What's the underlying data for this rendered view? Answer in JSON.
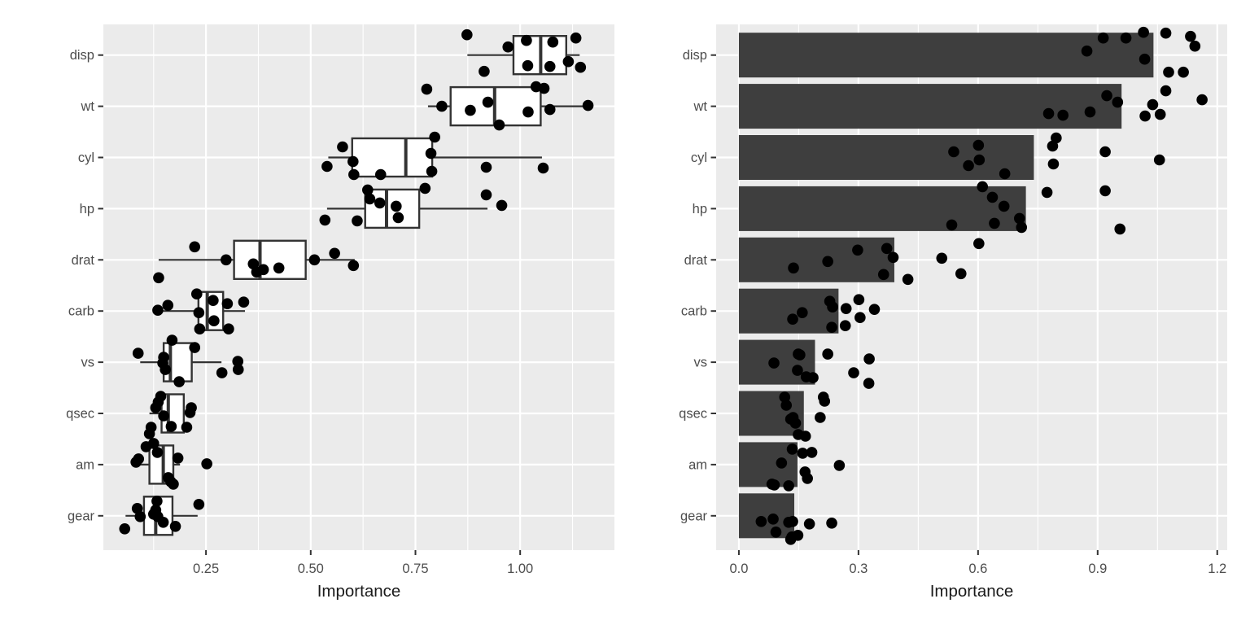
{
  "app": {
    "background": "#FFFFFF"
  },
  "style": {
    "panel_bg": "#EBEBEB",
    "grid_major": "#FFFFFF",
    "grid_minor": "#FFFFFF",
    "bar_fill": "#3E3E3E",
    "box_fill": "#FFFFFF",
    "box_stroke": "#333333",
    "point_color": "#000000",
    "axis_text_color": "#4D4D4D",
    "axis_title_color": "#1A1A1A",
    "tick_mark_color": "#333333"
  },
  "chart_data": [
    {
      "type": "boxplot",
      "title": "",
      "xlabel": "Importance",
      "ylabel": "",
      "legend": "none",
      "grid": true,
      "categories": [
        "disp",
        "wt",
        "cyl",
        "hp",
        "drat",
        "carb",
        "vs",
        "qsec",
        "am",
        "gear"
      ],
      "x_axis": {
        "tick_labels": [
          "0.25",
          "0.50",
          "0.75",
          "1.00"
        ],
        "tick_values": [
          0.25,
          0.5,
          0.75,
          1.0
        ],
        "minor_values": [
          0.125,
          0.375,
          0.625,
          0.875,
          1.125
        ],
        "range": [
          0.005,
          1.225
        ]
      },
      "boxes": [
        {
          "cat": "disp",
          "whisker_lo": 0.874,
          "q1": 0.984,
          "median": 1.049,
          "q3": 1.11,
          "whisker_hi": 1.142
        },
        {
          "cat": "wt",
          "whisker_lo": 0.78,
          "q1": 0.834,
          "median": 0.939,
          "q3": 1.049,
          "whisker_hi": 1.162
        },
        {
          "cat": "cyl",
          "whisker_lo": 0.542,
          "q1": 0.599,
          "median": 0.727,
          "q3": 0.79,
          "whisker_hi": 1.052
        },
        {
          "cat": "hp",
          "whisker_lo": 0.539,
          "q1": 0.63,
          "median": 0.681,
          "q3": 0.759,
          "whisker_hi": 0.922
        },
        {
          "cat": "drat",
          "whisker_lo": 0.137,
          "q1": 0.317,
          "median": 0.379,
          "q3": 0.488,
          "whisker_hi": 0.605
        },
        {
          "cat": "carb",
          "whisker_lo": 0.142,
          "q1": 0.232,
          "median": 0.253,
          "q3": 0.291,
          "whisker_hi": 0.343
        },
        {
          "cat": "vs",
          "whisker_lo": 0.093,
          "q1": 0.149,
          "median": 0.165,
          "q3": 0.216,
          "whisker_hi": 0.287
        },
        {
          "cat": "qsec",
          "whisker_lo": 0.115,
          "q1": 0.144,
          "median": 0.16,
          "q3": 0.197,
          "whisker_hi": 0.215
        },
        {
          "cat": "am",
          "whisker_lo": 0.078,
          "q1": 0.115,
          "median": 0.148,
          "q3": 0.172,
          "whisker_hi": 0.188
        },
        {
          "cat": "gear",
          "whisker_lo": 0.058,
          "q1": 0.102,
          "median": 0.13,
          "q3": 0.17,
          "whisker_hi": 0.23
        }
      ],
      "points": {
        "disp": [
          [
            0.873,
            -25
          ],
          [
            0.914,
            20
          ],
          [
            0.971,
            -10
          ],
          [
            1.015,
            -18
          ],
          [
            1.018,
            13
          ],
          [
            1.071,
            14
          ],
          [
            1.078,
            -16
          ],
          [
            1.115,
            8
          ],
          [
            1.133,
            -21
          ],
          [
            1.144,
            15
          ]
        ],
        "wt": [
          [
            0.777,
            -21
          ],
          [
            0.813,
            0
          ],
          [
            0.881,
            5
          ],
          [
            0.923,
            -5
          ],
          [
            0.95,
            23
          ],
          [
            1.019,
            7
          ],
          [
            1.038,
            -24
          ],
          [
            1.057,
            -22
          ],
          [
            1.071,
            4
          ],
          [
            1.162,
            -1
          ]
        ],
        "cyl": [
          [
            0.539,
            11
          ],
          [
            0.576,
            -13
          ],
          [
            0.601,
            5
          ],
          [
            0.603,
            21
          ],
          [
            0.667,
            21
          ],
          [
            0.787,
            -5
          ],
          [
            0.789,
            17
          ],
          [
            0.796,
            -25
          ],
          [
            0.919,
            12
          ],
          [
            1.055,
            13
          ]
        ],
        "hp": [
          [
            0.534,
            14
          ],
          [
            0.611,
            15
          ],
          [
            0.636,
            -23
          ],
          [
            0.641,
            -12
          ],
          [
            0.665,
            -7
          ],
          [
            0.704,
            -3
          ],
          [
            0.709,
            11
          ],
          [
            0.773,
            -25
          ],
          [
            0.919,
            -17
          ],
          [
            0.956,
            -4
          ]
        ],
        "drat": [
          [
            0.137,
            22
          ],
          [
            0.223,
            -16
          ],
          [
            0.298,
            0
          ],
          [
            0.363,
            5
          ],
          [
            0.371,
            15
          ],
          [
            0.387,
            12
          ],
          [
            0.424,
            10
          ],
          [
            0.509,
            0
          ],
          [
            0.557,
            -8
          ],
          [
            0.602,
            7
          ]
        ],
        "carb": [
          [
            0.135,
            -1
          ],
          [
            0.159,
            -7
          ],
          [
            0.228,
            -21
          ],
          [
            0.233,
            2
          ],
          [
            0.235,
            22
          ],
          [
            0.267,
            -13
          ],
          [
            0.269,
            12
          ],
          [
            0.301,
            -9
          ],
          [
            0.304,
            22
          ],
          [
            0.34,
            -11
          ]
        ],
        "vs": [
          [
            0.088,
            -11
          ],
          [
            0.147,
            1
          ],
          [
            0.149,
            -6
          ],
          [
            0.153,
            9
          ],
          [
            0.169,
            -27
          ],
          [
            0.186,
            24
          ],
          [
            0.223,
            -18
          ],
          [
            0.288,
            13
          ],
          [
            0.326,
            -1
          ],
          [
            0.327,
            9
          ]
        ],
        "qsec": [
          [
            0.115,
            25
          ],
          [
            0.119,
            17
          ],
          [
            0.13,
            -7
          ],
          [
            0.136,
            -14
          ],
          [
            0.142,
            -21
          ],
          [
            0.149,
            3
          ],
          [
            0.167,
            16
          ],
          [
            0.204,
            17
          ],
          [
            0.212,
            -1
          ],
          [
            0.215,
            -7
          ]
        ],
        "am": [
          [
            0.083,
            -3
          ],
          [
            0.089,
            -7
          ],
          [
            0.107,
            -22
          ],
          [
            0.125,
            -26
          ],
          [
            0.134,
            -15
          ],
          [
            0.16,
            16
          ],
          [
            0.166,
            21
          ],
          [
            0.172,
            24
          ],
          [
            0.183,
            -8
          ],
          [
            0.252,
            -1
          ]
        ],
        "gear": [
          [
            0.056,
            16
          ],
          [
            0.086,
            -9
          ],
          [
            0.093,
            1
          ],
          [
            0.125,
            -2
          ],
          [
            0.13,
            -7
          ],
          [
            0.133,
            -18
          ],
          [
            0.135,
            1
          ],
          [
            0.148,
            8
          ],
          [
            0.177,
            13
          ],
          [
            0.233,
            -14
          ]
        ]
      }
    },
    {
      "type": "bar",
      "title": "",
      "xlabel": "Importance",
      "ylabel": "",
      "legend": "none",
      "grid": true,
      "categories": [
        "disp",
        "wt",
        "cyl",
        "hp",
        "drat",
        "carb",
        "vs",
        "qsec",
        "am",
        "gear"
      ],
      "values": [
        1.04,
        0.96,
        0.74,
        0.72,
        0.39,
        0.25,
        0.191,
        0.163,
        0.147,
        0.139
      ],
      "x_axis": {
        "tick_labels": [
          "0.0",
          "0.3",
          "0.6",
          "0.9",
          "1.2"
        ],
        "tick_values": [
          0.0,
          0.3,
          0.6,
          0.9,
          1.2
        ],
        "minor_values": [
          0.15,
          0.45,
          0.75,
          1.05
        ],
        "range": [
          -0.057,
          1.225
        ]
      },
      "points": {
        "disp": [
          [
            0.873,
            -5
          ],
          [
            0.914,
            -21
          ],
          [
            0.971,
            -21
          ],
          [
            1.015,
            -28
          ],
          [
            1.018,
            5
          ],
          [
            1.071,
            -27
          ],
          [
            1.078,
            21
          ],
          [
            1.115,
            21
          ],
          [
            1.133,
            -23
          ],
          [
            1.144,
            -11
          ]
        ],
        "wt": [
          [
            0.777,
            9
          ],
          [
            0.813,
            11
          ],
          [
            0.881,
            7
          ],
          [
            0.923,
            -13
          ],
          [
            0.95,
            -5
          ],
          [
            1.019,
            12
          ],
          [
            1.038,
            -2
          ],
          [
            1.057,
            10
          ],
          [
            1.071,
            -19
          ],
          [
            1.162,
            -8
          ]
        ],
        "cyl": [
          [
            0.539,
            -7
          ],
          [
            0.576,
            10
          ],
          [
            0.601,
            -15
          ],
          [
            0.603,
            3
          ],
          [
            0.667,
            20
          ],
          [
            0.787,
            -14
          ],
          [
            0.789,
            8
          ],
          [
            0.796,
            -24
          ],
          [
            0.919,
            -7
          ],
          [
            1.055,
            3
          ]
        ],
        "hp": [
          [
            0.534,
            20
          ],
          [
            0.611,
            -27
          ],
          [
            0.636,
            -14
          ],
          [
            0.641,
            18
          ],
          [
            0.665,
            -3
          ],
          [
            0.704,
            12
          ],
          [
            0.709,
            23
          ],
          [
            0.773,
            -20
          ],
          [
            0.919,
            -22
          ],
          [
            0.956,
            25
          ]
        ],
        "drat": [
          [
            0.137,
            10
          ],
          [
            0.223,
            2
          ],
          [
            0.298,
            -12
          ],
          [
            0.363,
            18
          ],
          [
            0.371,
            -14
          ],
          [
            0.387,
            -3
          ],
          [
            0.424,
            24
          ],
          [
            0.509,
            -2
          ],
          [
            0.557,
            17
          ],
          [
            0.602,
            -20
          ]
        ],
        "carb": [
          [
            0.135,
            10
          ],
          [
            0.159,
            2
          ],
          [
            0.228,
            -12
          ],
          [
            0.233,
            20
          ],
          [
            0.235,
            -5
          ],
          [
            0.267,
            18
          ],
          [
            0.269,
            -3
          ],
          [
            0.301,
            -14
          ],
          [
            0.304,
            8
          ],
          [
            0.34,
            -2
          ]
        ],
        "vs": [
          [
            0.088,
            1
          ],
          [
            0.147,
            10
          ],
          [
            0.149,
            -10
          ],
          [
            0.153,
            -9
          ],
          [
            0.169,
            18
          ],
          [
            0.186,
            19
          ],
          [
            0.223,
            -10
          ],
          [
            0.288,
            13
          ],
          [
            0.326,
            26
          ],
          [
            0.327,
            -4
          ]
        ],
        "qsec": [
          [
            0.115,
            -20
          ],
          [
            0.119,
            -10
          ],
          [
            0.13,
            7
          ],
          [
            0.136,
            5
          ],
          [
            0.142,
            12
          ],
          [
            0.149,
            26
          ],
          [
            0.167,
            28
          ],
          [
            0.204,
            5
          ],
          [
            0.212,
            -20
          ],
          [
            0.215,
            -15
          ]
        ],
        "am": [
          [
            0.083,
            24
          ],
          [
            0.089,
            25
          ],
          [
            0.107,
            -2
          ],
          [
            0.125,
            26
          ],
          [
            0.134,
            -19
          ],
          [
            0.16,
            -14
          ],
          [
            0.166,
            9
          ],
          [
            0.172,
            17
          ],
          [
            0.183,
            -15
          ],
          [
            0.252,
            1
          ]
        ],
        "gear": [
          [
            0.056,
            7
          ],
          [
            0.086,
            4
          ],
          [
            0.093,
            20
          ],
          [
            0.125,
            8
          ],
          [
            0.13,
            29
          ],
          [
            0.133,
            26
          ],
          [
            0.135,
            7
          ],
          [
            0.148,
            24
          ],
          [
            0.177,
            10
          ],
          [
            0.233,
            9
          ]
        ]
      }
    }
  ]
}
